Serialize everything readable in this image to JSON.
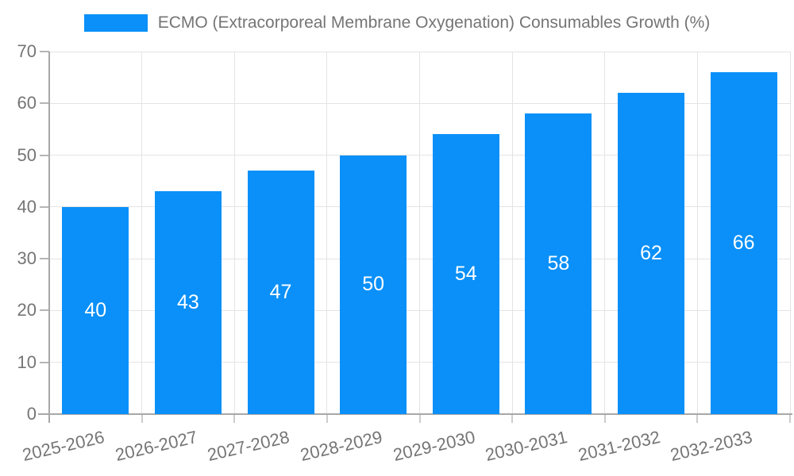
{
  "legend": {
    "label": "ECMO (Extracorporeal Membrane Oxygenation) Consumables Growth (%)",
    "swatch_color": "#0a90f8"
  },
  "chart_data": {
    "type": "bar",
    "title": "ECMO (Extracorporeal Membrane Oxygenation) Consumables Growth (%)",
    "categories": [
      "2025-2026",
      "2026-2027",
      "2027-2028",
      "2028-2029",
      "2029-2030",
      "2030-2031",
      "2031-2032",
      "2032-2033"
    ],
    "values": [
      40,
      43,
      47,
      50,
      54,
      58,
      62,
      66
    ],
    "xlabel": "",
    "ylabel": "",
    "ylim": [
      0,
      70
    ],
    "yticks": [
      0,
      10,
      20,
      30,
      40,
      50,
      60,
      70
    ],
    "grid": "on",
    "legend_position": "top",
    "value_labels": "inside-center",
    "bar_color": "#0a90f8",
    "value_label_color": "#ffffff",
    "axis_text_color": "#757575",
    "grid_color": "#e4e4e4",
    "axis_line_color": "#a8a8a8"
  }
}
